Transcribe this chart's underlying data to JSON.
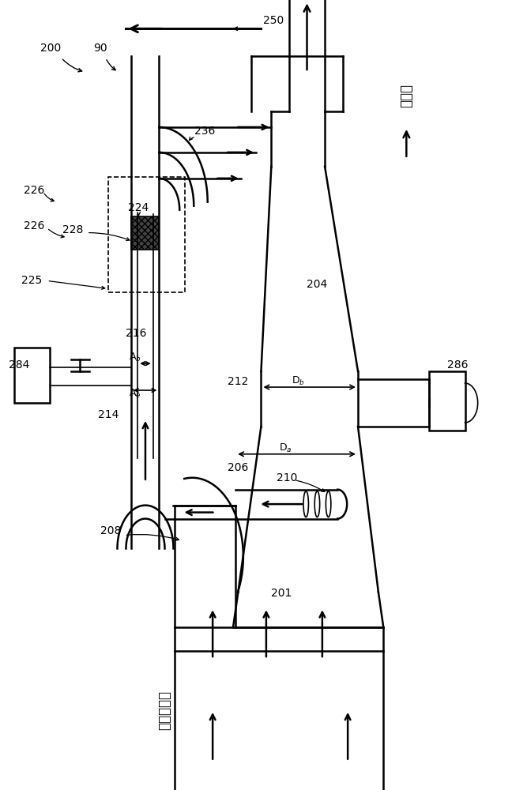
{
  "bg_color": "#ffffff",
  "line_color": "#000000",
  "fig_width": 6.48,
  "fig_height": 10.0,
  "fs": 10,
  "fs_small": 9,
  "fs_chinese": 12,
  "lw": 1.8,
  "lw_thin": 1.2
}
